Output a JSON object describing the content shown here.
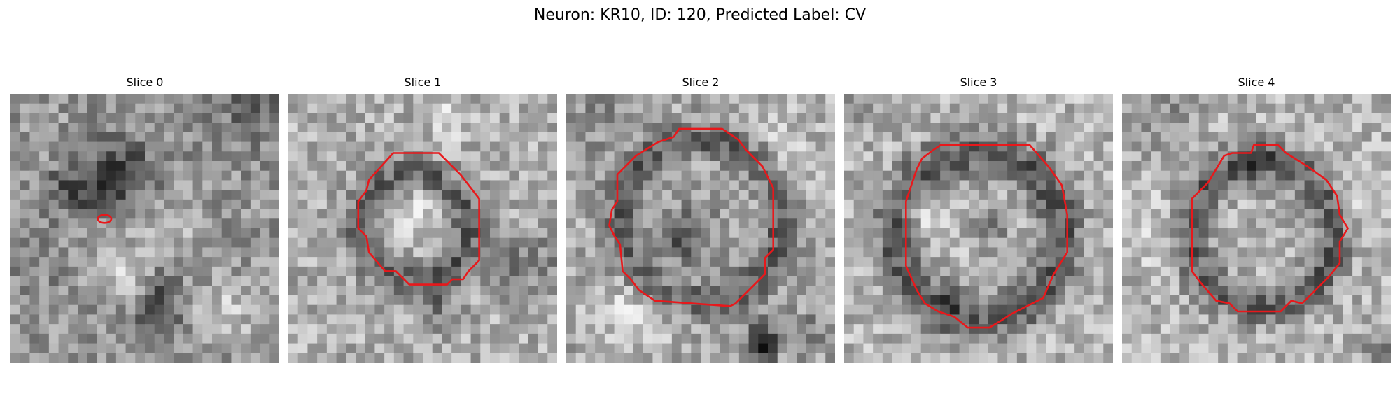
{
  "figure": {
    "title": "Neuron: KR10, ID: 120, Predicted Label: CV"
  },
  "panels": [
    {
      "title": "Slice 0"
    },
    {
      "title": "Slice 1"
    },
    {
      "title": "Slice 2"
    },
    {
      "title": "Slice 3"
    },
    {
      "title": "Slice 4"
    }
  ],
  "colors": {
    "contour": "#e8181b",
    "background": "#ffffff"
  }
}
